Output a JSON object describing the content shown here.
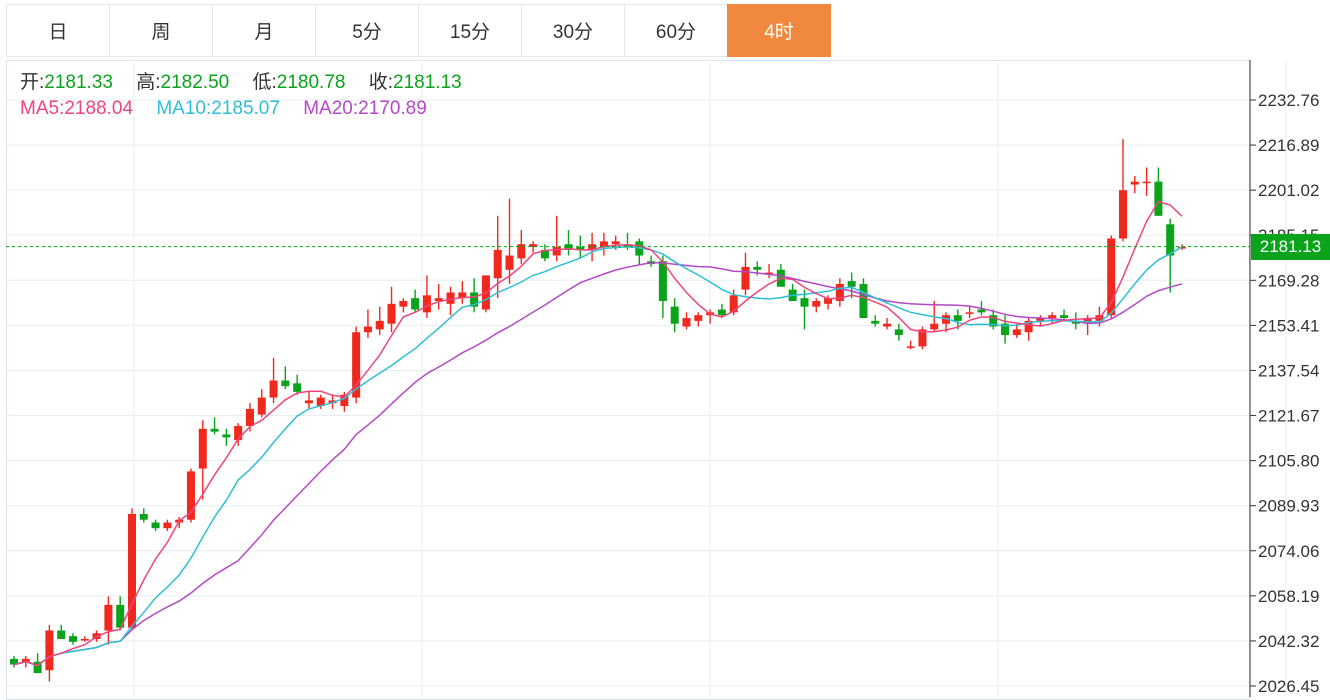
{
  "tabs": [
    "日",
    "周",
    "月",
    "5分",
    "15分",
    "30分",
    "60分",
    "4时"
  ],
  "active_tab": "4时",
  "info": {
    "open_label": "开:",
    "open": "2181.33",
    "high_label": "高:",
    "high": "2182.50",
    "low_label": "低:",
    "low": "2180.78",
    "close_label": "收:",
    "close": "2181.13",
    "ma5_label": "MA5:",
    "ma5": "2188.04",
    "ma10_label": "MA10:",
    "ma10": "2185.07",
    "ma20_label": "MA20:",
    "ma20": "2170.89"
  },
  "last_price": "2181.13",
  "colors": {
    "up": "#f0291f",
    "down": "#0aa31b",
    "ma5": "#f0447d",
    "ma10": "#2ebfd6",
    "ma20": "#b548c6",
    "accent": "#f0883e"
  },
  "chart_data": {
    "type": "candlestick",
    "y_ticks": [
      "2232.76",
      "2216.89",
      "2201.02",
      "2185.15",
      "2169.28",
      "2153.41",
      "2137.54",
      "2121.67",
      "2105.80",
      "2089.93",
      "2074.06",
      "2058.19",
      "2042.32",
      "2026.45"
    ],
    "ylim": [
      2026.45,
      2232.76
    ],
    "last_price": 2181.13,
    "candles": [
      [
        2036,
        2037,
        2033,
        2034
      ],
      [
        2035,
        2037,
        2033,
        2036
      ],
      [
        2035,
        2038,
        2031,
        2031
      ],
      [
        2032,
        2048,
        2028,
        2046
      ],
      [
        2046,
        2048,
        2043,
        2043
      ],
      [
        2044,
        2045,
        2041,
        2042
      ],
      [
        2043,
        2044,
        2042,
        2043
      ],
      [
        2043,
        2046,
        2042,
        2045
      ],
      [
        2046,
        2058,
        2041,
        2055
      ],
      [
        2055,
        2058,
        2046,
        2047
      ],
      [
        2047,
        2089,
        2046,
        2087
      ],
      [
        2087,
        2089,
        2084,
        2085
      ],
      [
        2084,
        2085,
        2081,
        2082
      ],
      [
        2082,
        2085,
        2081,
        2084
      ],
      [
        2084,
        2086,
        2082,
        2085
      ],
      [
        2085,
        2103,
        2084,
        2102
      ],
      [
        2103,
        2120,
        2092,
        2117
      ],
      [
        2117,
        2121,
        2115,
        2116
      ],
      [
        2115,
        2117,
        2111,
        2114
      ],
      [
        2113,
        2119,
        2111,
        2118
      ],
      [
        2118,
        2126,
        2116,
        2124
      ],
      [
        2122,
        2131,
        2121,
        2128
      ],
      [
        2128,
        2142,
        2126,
        2134
      ],
      [
        2134,
        2139,
        2131,
        2132
      ],
      [
        2133,
        2136,
        2129,
        2130
      ],
      [
        2126,
        2130,
        2124,
        2127
      ],
      [
        2125,
        2129,
        2124,
        2128
      ],
      [
        2126,
        2129,
        2124,
        2127
      ],
      [
        2125,
        2130,
        2123,
        2129
      ],
      [
        2128,
        2153,
        2126,
        2151
      ],
      [
        2151,
        2159,
        2149,
        2153
      ],
      [
        2152,
        2160,
        2150,
        2155
      ],
      [
        2154,
        2167,
        2151,
        2161
      ],
      [
        2160,
        2163,
        2158,
        2162
      ],
      [
        2163,
        2166,
        2158,
        2159
      ],
      [
        2158,
        2171,
        2156,
        2164
      ],
      [
        2162,
        2168,
        2159,
        2163
      ],
      [
        2161,
        2167,
        2157,
        2165
      ],
      [
        2163,
        2169,
        2161,
        2165
      ],
      [
        2165,
        2170,
        2158,
        2160
      ],
      [
        2159,
        2171,
        2158,
        2171
      ],
      [
        2170,
        2192,
        2163,
        2180
      ],
      [
        2173,
        2198,
        2168,
        2178
      ],
      [
        2177,
        2187,
        2175,
        2182
      ],
      [
        2181,
        2183,
        2179,
        2182
      ],
      [
        2180,
        2182,
        2176,
        2177
      ],
      [
        2178,
        2192,
        2176,
        2181
      ],
      [
        2182,
        2187,
        2178,
        2180
      ],
      [
        2181,
        2185,
        2177,
        2180
      ],
      [
        2180,
        2186,
        2176,
        2182
      ],
      [
        2181,
        2186,
        2178,
        2183
      ],
      [
        2182,
        2185,
        2180,
        2183
      ],
      [
        2182,
        2186,
        2180,
        2181
      ],
      [
        2183,
        2184,
        2175,
        2178
      ],
      [
        2176,
        2178,
        2174,
        2175
      ],
      [
        2176,
        2178,
        2156,
        2162
      ],
      [
        2160,
        2163,
        2151,
        2154
      ],
      [
        2153,
        2158,
        2152,
        2156
      ],
      [
        2155,
        2158,
        2153,
        2157
      ],
      [
        2157,
        2159,
        2154,
        2158
      ],
      [
        2159,
        2161,
        2156,
        2157
      ],
      [
        2158,
        2166,
        2157,
        2164
      ],
      [
        2166,
        2179,
        2164,
        2174
      ],
      [
        2174,
        2176,
        2171,
        2173
      ],
      [
        2172,
        2175,
        2170,
        2172
      ],
      [
        2173,
        2175,
        2169,
        2167
      ],
      [
        2166,
        2168,
        2162,
        2162
      ],
      [
        2163,
        2166,
        2152,
        2160
      ],
      [
        2160,
        2163,
        2158,
        2162
      ],
      [
        2161,
        2164,
        2159,
        2163
      ],
      [
        2162,
        2170,
        2160,
        2168
      ],
      [
        2169,
        2172,
        2163,
        2167
      ],
      [
        2168,
        2170,
        2158,
        2156
      ],
      [
        2155,
        2157,
        2153,
        2154
      ],
      [
        2153,
        2156,
        2152,
        2154
      ],
      [
        2152,
        2154,
        2148,
        2150
      ],
      [
        2146,
        2148,
        2145,
        2146
      ],
      [
        2146,
        2153,
        2145,
        2152
      ],
      [
        2152,
        2162,
        2151,
        2154
      ],
      [
        2154,
        2158,
        2151,
        2157
      ],
      [
        2157,
        2159,
        2152,
        2155
      ],
      [
        2158,
        2160,
        2156,
        2158
      ],
      [
        2159,
        2162,
        2157,
        2158
      ],
      [
        2157,
        2159,
        2152,
        2153
      ],
      [
        2154,
        2157,
        2147,
        2150
      ],
      [
        2150,
        2154,
        2149,
        2152
      ],
      [
        2151,
        2156,
        2148,
        2155
      ],
      [
        2155,
        2157,
        2153,
        2156
      ],
      [
        2156,
        2158,
        2154,
        2157
      ],
      [
        2157,
        2159,
        2155,
        2156
      ],
      [
        2155,
        2158,
        2152,
        2154
      ],
      [
        2154,
        2157,
        2150,
        2156
      ],
      [
        2155,
        2160,
        2153,
        2157
      ],
      [
        2157,
        2185,
        2156,
        2184
      ],
      [
        2184,
        2219,
        2183,
        2201
      ],
      [
        2203,
        2206,
        2200,
        2204
      ],
      [
        2204,
        2209,
        2199,
        2204
      ],
      [
        2204,
        2209,
        2192,
        2192
      ],
      [
        2189,
        2191,
        2165,
        2178
      ],
      [
        2181,
        2182,
        2180,
        2181
      ]
    ]
  }
}
